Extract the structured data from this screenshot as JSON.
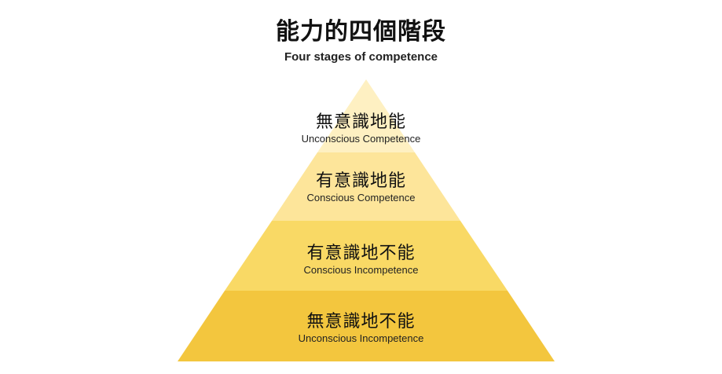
{
  "header": {
    "title": "能力的四個階段",
    "subtitle": "Four stages of competence"
  },
  "levels": [
    {
      "zh": "無意識地能",
      "en": "Unconscious Competence",
      "color": "#FEF0C2"
    },
    {
      "zh": "有意識地能",
      "en": "Conscious Competence",
      "color": "#FDE59A"
    },
    {
      "zh": "有意識地不能",
      "en": "Conscious Incompetence",
      "color": "#F9D965"
    },
    {
      "zh": "無意識地不能",
      "en": "Unconscious Incompetence",
      "color": "#F3C63E"
    }
  ]
}
